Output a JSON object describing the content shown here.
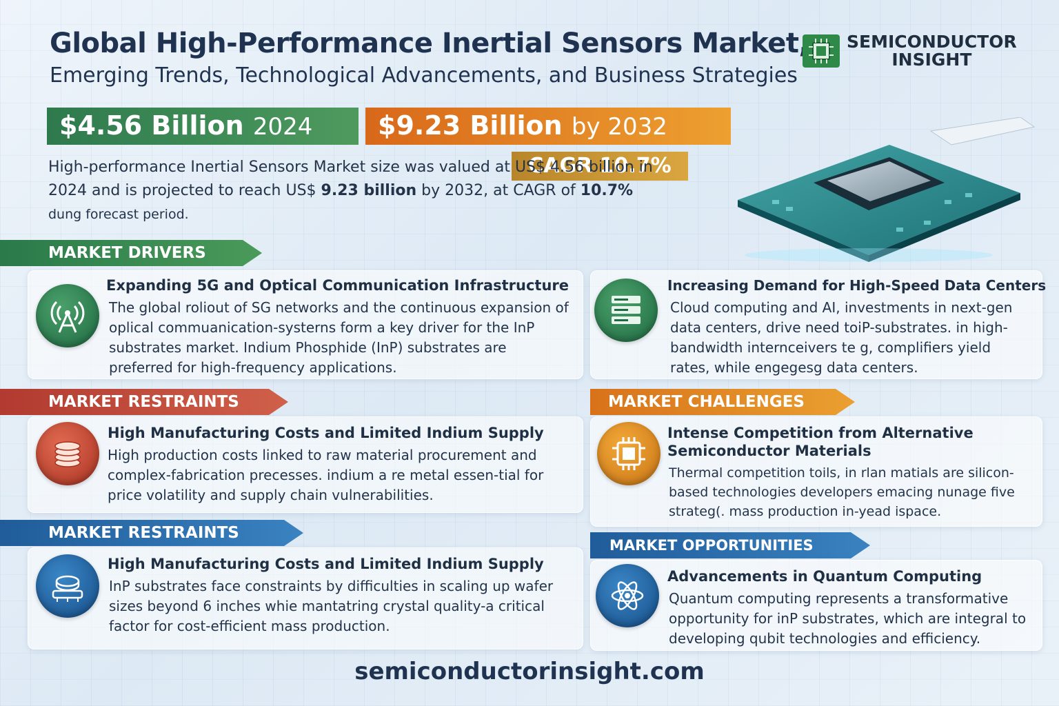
{
  "header": {
    "title": "Global High-Performance Inertial Sensors Market,",
    "subtitle": "Emerging Trends, Technological Advancements, and Business Strategies",
    "logo_line1": "SEMICONDUCTOR",
    "logo_line2": "INSIGHT"
  },
  "stats": {
    "value_2024": "$4.56 Billion",
    "year_2024": "2024",
    "value_2032": "$9.23 Billion",
    "year_2032": "by 2032",
    "cagr": "CAGR 10.7%"
  },
  "summary": {
    "part1": "High-performance Inertial Sensors Market size was valued at US$ 4.56 billion in 2024 and is projected to reach US$ ",
    "bold1": "9.23 billion",
    "part2": " by 2032, at CAGR of ",
    "bold2": "10.7%",
    "part3": " dung forecast period."
  },
  "sections": {
    "drivers_label": "MARKET DRIVERS",
    "restraints_label": "MARKET RESTRAINTS",
    "challenges_label": "MARKET CHALLENGES",
    "restraints2_label": "MARKET RESTRAINTS",
    "opportunities_label": "MARKET OPPORTUNITIES"
  },
  "cards": {
    "driver1": {
      "title": "Expanding 5G and Optical Communication Infrastructure",
      "body": "The global roliout of SG networks and the continuous expansion of oplical commuanication-systerns form a key driver for the InP substrates market. Indium Phosphide (InP) substrates are preferred for high-frequency applications.",
      "icon": "antenna-icon"
    },
    "driver2": {
      "title": "Increasing Demand for High-Speed Data Centers",
      "body": "Cloud computing and AI, investments in next-gen data centers, drive need toiP-substrates. in high-bandwidth internceivers te g, complifiers yield rates, while engegesg data centers.",
      "icon": "server-icon"
    },
    "restraint1": {
      "title": "High Manufacturing Costs and Limited Indium Supply",
      "body": "High production costs linked to raw material procurement and complex-fabrication precesses. indium a re metal essen-tial for price volatility and supply chain vulnerabilities.",
      "icon": "coin-stack-icon"
    },
    "challenge1": {
      "title_line1": "Intense Competition from Alternative",
      "title_line2": "Semiconductor Materials",
      "body": "Thermal competition toils, in rlan matials are silicon-based technologies developers emacing nunage five strateg(. mass production in-yead ispace.",
      "icon": "chip-icon"
    },
    "restraint2": {
      "title": "High Manufacturing Costs and Limited Indium Supply",
      "body": "InP substrates face constraints by difficulties in scaling up wafer sizes beyond 6 inches whie mantatring crystal quality-a critical factor for cost-efficient mass production.",
      "icon": "wafer-icon"
    },
    "opportunity1": {
      "title": "Advancements in Quantum Computing",
      "body": "Quantum computing represents a transformative opportunity for inP substrates, which are integral to developing qubit technologies and efficiency.",
      "icon": "atom-icon"
    }
  },
  "footer": {
    "url": "semiconductorinsight.com"
  }
}
